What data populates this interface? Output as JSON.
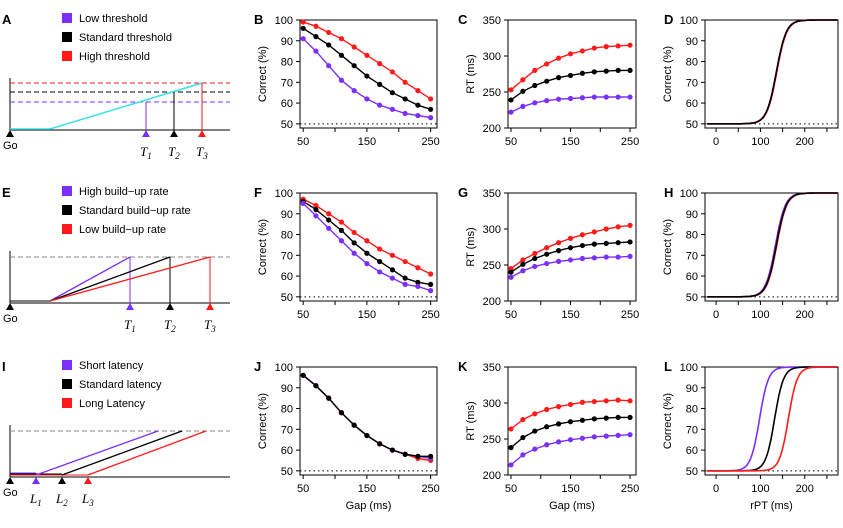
{
  "colors": {
    "low": "#7b2ff7",
    "std": "#000000",
    "high": "#ff1a1a",
    "cyan": "#38e0e8",
    "dash": "#888888"
  },
  "rows": [
    {
      "schematic": {
        "label": "A",
        "legend": [
          "Low threshold",
          "Standard threshold",
          "High threshold"
        ],
        "go": "Go",
        "markers": [
          {
            "letter": "T",
            "sub": "1"
          },
          {
            "letter": "T",
            "sub": "2"
          },
          {
            "letter": "T",
            "sub": "3"
          }
        ]
      },
      "correct": {
        "label": "B",
        "ylabel": "Correct (%)",
        "xlabel": "",
        "series": [
          {
            "color": "high",
            "values": [
              99,
              97,
              94,
              91,
              87,
              83,
              79,
              75,
              70,
              66,
              62
            ]
          },
          {
            "color": "std",
            "values": [
              96,
              92,
              88,
              83,
              78,
              73,
              69,
              65,
              62,
              59,
              57
            ]
          },
          {
            "color": "low",
            "values": [
              91,
              85,
              78,
              71,
              66,
              62,
              59,
              57,
              55,
              54,
              53
            ]
          }
        ]
      },
      "rt": {
        "label": "C",
        "ylabel": "RT (ms)",
        "xlabel": "",
        "series": [
          {
            "color": "high",
            "values": [
              253,
              267,
              280,
              289,
              297,
              303,
              307,
              311,
              313,
              314,
              315
            ]
          },
          {
            "color": "std",
            "values": [
              239,
              251,
              259,
              265,
              270,
              273,
              276,
              278,
              279,
              280,
              280
            ]
          },
          {
            "color": "low",
            "values": [
              222,
              230,
              235,
              238,
              240,
              241,
              242,
              243,
              243,
              243,
              243
            ]
          }
        ]
      },
      "cum": {
        "label": "D",
        "ylabel": "Correct (%)",
        "xlabel": "",
        "curves": [
          {
            "color": "low",
            "mid": 136,
            "k": 0.09
          },
          {
            "color": "high",
            "mid": 137,
            "k": 0.09
          },
          {
            "color": "std",
            "mid": 136,
            "k": 0.09
          }
        ]
      }
    },
    {
      "schematic": {
        "label": "E",
        "legend": [
          "High build−up rate",
          "Standard build−up rate",
          "Low build−up rate"
        ],
        "go": "Go",
        "markers": [
          {
            "letter": "T",
            "sub": "1"
          },
          {
            "letter": "T",
            "sub": "2"
          },
          {
            "letter": "T",
            "sub": "3"
          }
        ]
      },
      "correct": {
        "label": "F",
        "ylabel": "Correct (%)",
        "xlabel": "",
        "series": [
          {
            "color": "high",
            "values": [
              97,
              94,
              90,
              86,
              81,
              77,
              73,
              70,
              67,
              64,
              61
            ]
          },
          {
            "color": "std",
            "values": [
              96,
              92,
              87,
              82,
              76,
              71,
              67,
              63,
              59,
              57,
              56
            ]
          },
          {
            "color": "low",
            "values": [
              95,
              89,
              83,
              77,
              71,
              66,
              62,
              59,
              56,
              55,
              53
            ]
          }
        ]
      },
      "rt": {
        "label": "G",
        "ylabel": "RT (ms)",
        "xlabel": "",
        "series": [
          {
            "color": "high",
            "values": [
              245,
              257,
              266,
              274,
              281,
              287,
              292,
              296,
              300,
              303,
              305
            ]
          },
          {
            "color": "std",
            "values": [
              240,
              251,
              259,
              265,
              270,
              274,
              277,
              279,
              280,
              281,
              282
            ]
          },
          {
            "color": "low",
            "values": [
              233,
              242,
              248,
              252,
              255,
              257,
              259,
              260,
              261,
              261,
              262
            ]
          }
        ]
      },
      "cum": {
        "label": "H",
        "ylabel": "Correct (%)",
        "xlabel": "",
        "curves": [
          {
            "color": "low",
            "mid": 134,
            "k": 0.09
          },
          {
            "color": "high",
            "mid": 137,
            "k": 0.09
          },
          {
            "color": "std",
            "mid": 136,
            "k": 0.09
          }
        ]
      }
    },
    {
      "schematic": {
        "label": "I",
        "legend": [
          "Short latency",
          "Standard latency",
          "Long Latency"
        ],
        "go": "Go",
        "markers": [
          {
            "letter": "L",
            "sub": "1"
          },
          {
            "letter": "L",
            "sub": "2"
          },
          {
            "letter": "L",
            "sub": "3"
          }
        ]
      },
      "correct": {
        "label": "J",
        "ylabel": "Correct (%)",
        "xlabel": "Gap (ms)",
        "series": [
          {
            "color": "high",
            "values": [
              96,
              91,
              85,
              78,
              72,
              67,
              63,
              60,
              58,
              56,
              55
            ]
          },
          {
            "color": "low",
            "values": [
              96,
              91,
              85,
              78,
              72,
              67,
              63,
              60,
              58,
              57,
              56
            ]
          },
          {
            "color": "std",
            "values": [
              96,
              91,
              85,
              78,
              72,
              67,
              63,
              60,
              58,
              57,
              57
            ]
          }
        ]
      },
      "rt": {
        "label": "K",
        "ylabel": "RT (ms)",
        "xlabel": "Gap (ms)",
        "series": [
          {
            "color": "high",
            "values": [
              264,
              277,
              285,
              291,
              295,
              298,
              301,
              302,
              303,
              304,
              303
            ]
          },
          {
            "color": "std",
            "values": [
              238,
              252,
              261,
              267,
              271,
              274,
              276,
              278,
              279,
              280,
              280
            ]
          },
          {
            "color": "low",
            "values": [
              214,
              228,
              236,
              242,
              246,
              249,
              251,
              253,
              254,
              255,
              256
            ]
          }
        ]
      },
      "cum": {
        "label": "L",
        "ylabel": "Correct (%)",
        "xlabel": "rPT (ms)",
        "curves": [
          {
            "color": "low",
            "mid": 98,
            "k": 0.1
          },
          {
            "color": "std",
            "mid": 132,
            "k": 0.1
          },
          {
            "color": "high",
            "mid": 163,
            "k": 0.1
          }
        ]
      }
    }
  ],
  "chart_data": [
    {
      "type": "line",
      "title": "B",
      "x": [
        50,
        70,
        90,
        110,
        130,
        150,
        170,
        190,
        210,
        230,
        250
      ],
      "xlabel": "",
      "ylabel": "Correct (%)",
      "ylim": [
        48,
        100
      ],
      "xlim": [
        45,
        260
      ],
      "reference_line": 50,
      "series": [
        {
          "name": "High threshold",
          "values": [
            99,
            97,
            94,
            91,
            87,
            83,
            79,
            75,
            70,
            66,
            62
          ]
        },
        {
          "name": "Standard threshold",
          "values": [
            96,
            92,
            88,
            83,
            78,
            73,
            69,
            65,
            62,
            59,
            57
          ]
        },
        {
          "name": "Low threshold",
          "values": [
            91,
            85,
            78,
            71,
            66,
            62,
            59,
            57,
            55,
            54,
            53
          ]
        }
      ]
    },
    {
      "type": "line",
      "title": "C",
      "x": [
        50,
        70,
        90,
        110,
        130,
        150,
        170,
        190,
        210,
        230,
        250
      ],
      "xlabel": "",
      "ylabel": "RT (ms)",
      "ylim": [
        200,
        350
      ],
      "xlim": [
        45,
        260
      ],
      "series": [
        {
          "name": "High threshold",
          "values": [
            253,
            267,
            280,
            289,
            297,
            303,
            307,
            311,
            313,
            314,
            315
          ]
        },
        {
          "name": "Standard threshold",
          "values": [
            239,
            251,
            259,
            265,
            270,
            273,
            276,
            278,
            279,
            280,
            280
          ]
        },
        {
          "name": "Low threshold",
          "values": [
            222,
            230,
            235,
            238,
            240,
            241,
            242,
            243,
            243,
            243,
            243
          ]
        }
      ]
    },
    {
      "type": "line",
      "title": "D",
      "xlabel": "",
      "ylabel": "Correct (%)",
      "ylim": [
        48,
        100
      ],
      "xlim": [
        -25,
        275
      ],
      "reference_line": 50,
      "series": [
        {
          "name": "Low threshold",
          "form": "logistic 50-100",
          "midpoint": 136
        },
        {
          "name": "High threshold",
          "form": "logistic 50-100",
          "midpoint": 137
        },
        {
          "name": "Standard threshold",
          "form": "logistic 50-100",
          "midpoint": 136
        }
      ]
    },
    {
      "type": "line",
      "title": "F",
      "x": [
        50,
        70,
        90,
        110,
        130,
        150,
        170,
        190,
        210,
        230,
        250
      ],
      "xlabel": "",
      "ylabel": "Correct (%)",
      "ylim": [
        48,
        100
      ],
      "xlim": [
        45,
        260
      ],
      "reference_line": 50,
      "series": [
        {
          "name": "Low build-up rate",
          "values": [
            97,
            94,
            90,
            86,
            81,
            77,
            73,
            70,
            67,
            64,
            61
          ]
        },
        {
          "name": "Standard build-up rate",
          "values": [
            96,
            92,
            87,
            82,
            76,
            71,
            67,
            63,
            59,
            57,
            56
          ]
        },
        {
          "name": "High build-up rate",
          "values": [
            95,
            89,
            83,
            77,
            71,
            66,
            62,
            59,
            56,
            55,
            53
          ]
        }
      ]
    },
    {
      "type": "line",
      "title": "G",
      "x": [
        50,
        70,
        90,
        110,
        130,
        150,
        170,
        190,
        210,
        230,
        250
      ],
      "xlabel": "",
      "ylabel": "RT (ms)",
      "ylim": [
        200,
        350
      ],
      "xlim": [
        45,
        260
      ],
      "series": [
        {
          "name": "Low build-up rate",
          "values": [
            245,
            257,
            266,
            274,
            281,
            287,
            292,
            296,
            300,
            303,
            305
          ]
        },
        {
          "name": "Standard build-up rate",
          "values": [
            240,
            251,
            259,
            265,
            270,
            274,
            277,
            279,
            280,
            281,
            282
          ]
        },
        {
          "name": "High build-up rate",
          "values": [
            233,
            242,
            248,
            252,
            255,
            257,
            259,
            260,
            261,
            261,
            262
          ]
        }
      ]
    },
    {
      "type": "line",
      "title": "H",
      "xlabel": "",
      "ylabel": "Correct (%)",
      "ylim": [
        48,
        100
      ],
      "xlim": [
        -25,
        275
      ],
      "reference_line": 50,
      "series": [
        {
          "name": "High build-up rate",
          "form": "logistic 50-100",
          "midpoint": 134
        },
        {
          "name": "Low build-up rate",
          "form": "logistic 50-100",
          "midpoint": 137
        },
        {
          "name": "Standard build-up rate",
          "form": "logistic 50-100",
          "midpoint": 136
        }
      ]
    },
    {
      "type": "line",
      "title": "J",
      "x": [
        50,
        70,
        90,
        110,
        130,
        150,
        170,
        190,
        210,
        230,
        250
      ],
      "xlabel": "Gap (ms)",
      "ylabel": "Correct (%)",
      "ylim": [
        48,
        100
      ],
      "xlim": [
        45,
        260
      ],
      "reference_line": 50,
      "series": [
        {
          "name": "Long Latency",
          "values": [
            96,
            91,
            85,
            78,
            72,
            67,
            63,
            60,
            58,
            56,
            55
          ]
        },
        {
          "name": "Short latency",
          "values": [
            96,
            91,
            85,
            78,
            72,
            67,
            63,
            60,
            58,
            57,
            56
          ]
        },
        {
          "name": "Standard latency",
          "values": [
            96,
            91,
            85,
            78,
            72,
            67,
            63,
            60,
            58,
            57,
            57
          ]
        }
      ]
    },
    {
      "type": "line",
      "title": "K",
      "x": [
        50,
        70,
        90,
        110,
        130,
        150,
        170,
        190,
        210,
        230,
        250
      ],
      "xlabel": "Gap (ms)",
      "ylabel": "RT (ms)",
      "ylim": [
        200,
        350
      ],
      "xlim": [
        45,
        260
      ],
      "series": [
        {
          "name": "Long Latency",
          "values": [
            264,
            277,
            285,
            291,
            295,
            298,
            301,
            302,
            303,
            304,
            303
          ]
        },
        {
          "name": "Standard latency",
          "values": [
            238,
            252,
            261,
            267,
            271,
            274,
            276,
            278,
            279,
            280,
            280
          ]
        },
        {
          "name": "Short latency",
          "values": [
            214,
            228,
            236,
            242,
            246,
            249,
            251,
            253,
            254,
            255,
            256
          ]
        }
      ]
    },
    {
      "type": "line",
      "title": "L",
      "xlabel": "rPT (ms)",
      "ylabel": "Correct (%)",
      "ylim": [
        48,
        100
      ],
      "xlim": [
        -25,
        275
      ],
      "reference_line": 50,
      "series": [
        {
          "name": "Short latency",
          "form": "logistic 50-100",
          "midpoint": 98
        },
        {
          "name": "Standard latency",
          "form": "logistic 50-100",
          "midpoint": 132
        },
        {
          "name": "Long Latency",
          "form": "logistic 50-100",
          "midpoint": 163
        }
      ]
    }
  ],
  "gap_x": [
    50,
    70,
    90,
    110,
    130,
    150,
    170,
    190,
    210,
    230,
    250
  ],
  "axes": {
    "correct": {
      "xticks": [
        50,
        150,
        250
      ],
      "xminor": [
        100,
        200
      ],
      "yticks": [
        50,
        60,
        70,
        80,
        90,
        100
      ],
      "xlim": [
        45,
        260
      ],
      "ylim": [
        48,
        100
      ],
      "ref": 50
    },
    "rt": {
      "xticks": [
        50,
        150,
        250
      ],
      "xminor": [
        100,
        200
      ],
      "yticks": [
        200,
        250,
        300,
        350
      ],
      "xlim": [
        45,
        260
      ],
      "ylim": [
        200,
        350
      ]
    },
    "cum": {
      "xticks": [
        0,
        100,
        200
      ],
      "xminor": [
        50,
        150,
        250
      ],
      "yticks": [
        50,
        60,
        70,
        80,
        90,
        100
      ],
      "xlim": [
        -25,
        275
      ],
      "ylim": [
        48,
        100
      ],
      "ref": 50
    }
  }
}
